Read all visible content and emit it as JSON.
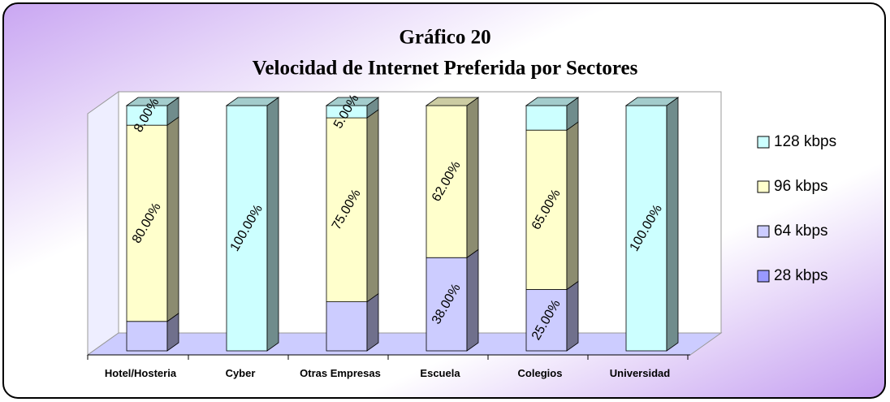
{
  "chart_data": {
    "type": "bar",
    "stacked": true,
    "title": "Gráfico 20",
    "subtitle": "Velocidad de Internet Preferida por Sectores",
    "categories": [
      "Hotel/Hosteria",
      "Cyber",
      "Otras Empresas",
      "Escuela",
      "Colegios",
      "Universidad"
    ],
    "ylim": [
      0,
      100
    ],
    "series": [
      {
        "name": "28 kbps",
        "color": "#9999ff",
        "values": [
          0,
          0,
          0,
          0,
          0,
          0
        ],
        "value_labels": [
          null,
          null,
          null,
          null,
          null,
          null
        ]
      },
      {
        "name": "64 kbps",
        "color": "#ccccff",
        "values": [
          12,
          0,
          20,
          38,
          25,
          0
        ],
        "value_labels": [
          null,
          null,
          null,
          "38.00%",
          "25.00%",
          null
        ]
      },
      {
        "name": "96 kbps",
        "color": "#ffffcc",
        "values": [
          80,
          0,
          75,
          62,
          65,
          0
        ],
        "value_labels": [
          "80.00%",
          null,
          "75.00%",
          "62.00%",
          "65.00%",
          null
        ]
      },
      {
        "name": "128 kbps",
        "color": "#ccffff",
        "values": [
          8,
          100,
          5,
          0,
          10,
          100
        ],
        "value_labels": [
          "8.00%",
          "100.00%",
          "5.00%",
          null,
          null,
          "100.00%"
        ]
      }
    ],
    "legend": "right"
  }
}
